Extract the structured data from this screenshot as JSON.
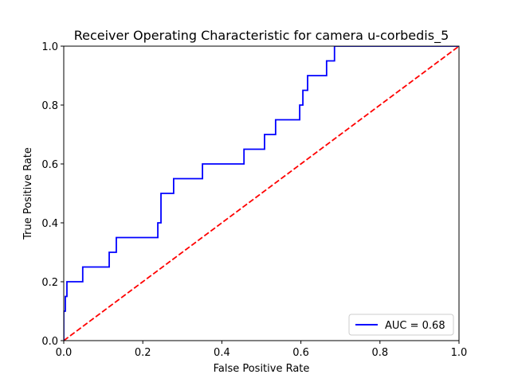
{
  "chart_data": {
    "type": "line",
    "title": "Receiver Operating Characteristic for camera u-corbedis_5",
    "xlabel": "False Positive Rate",
    "ylabel": "True Positive Rate",
    "xlim": [
      0,
      1
    ],
    "ylim": [
      0,
      1
    ],
    "xticks": [
      "0.0",
      "0.2",
      "0.4",
      "0.6",
      "0.8",
      "1.0"
    ],
    "yticks": [
      "0.0",
      "0.2",
      "0.4",
      "0.6",
      "0.8",
      "1.0"
    ],
    "grid": false,
    "legend_placement": "lower-right",
    "series": [
      {
        "name": "AUC = 0.68",
        "color": "#0000ff",
        "style": "solid",
        "x": [
          0.0,
          0.0,
          0.004,
          0.004,
          0.008,
          0.008,
          0.048,
          0.048,
          0.115,
          0.115,
          0.133,
          0.133,
          0.238,
          0.238,
          0.246,
          0.246,
          0.278,
          0.278,
          0.351,
          0.351,
          0.456,
          0.456,
          0.508,
          0.508,
          0.536,
          0.536,
          0.597,
          0.597,
          0.605,
          0.605,
          0.617,
          0.617,
          0.665,
          0.665,
          0.685,
          0.685,
          1.0
        ],
        "y": [
          0.0,
          0.1,
          0.1,
          0.15,
          0.15,
          0.2,
          0.2,
          0.25,
          0.25,
          0.3,
          0.3,
          0.35,
          0.35,
          0.4,
          0.4,
          0.5,
          0.5,
          0.55,
          0.55,
          0.6,
          0.6,
          0.65,
          0.65,
          0.7,
          0.7,
          0.75,
          0.75,
          0.8,
          0.8,
          0.85,
          0.85,
          0.9,
          0.9,
          0.95,
          0.95,
          1.0,
          1.0
        ]
      },
      {
        "color": "#ff0000",
        "style": "dashed",
        "x": [
          0,
          1
        ],
        "y": [
          0,
          1
        ]
      }
    ]
  }
}
